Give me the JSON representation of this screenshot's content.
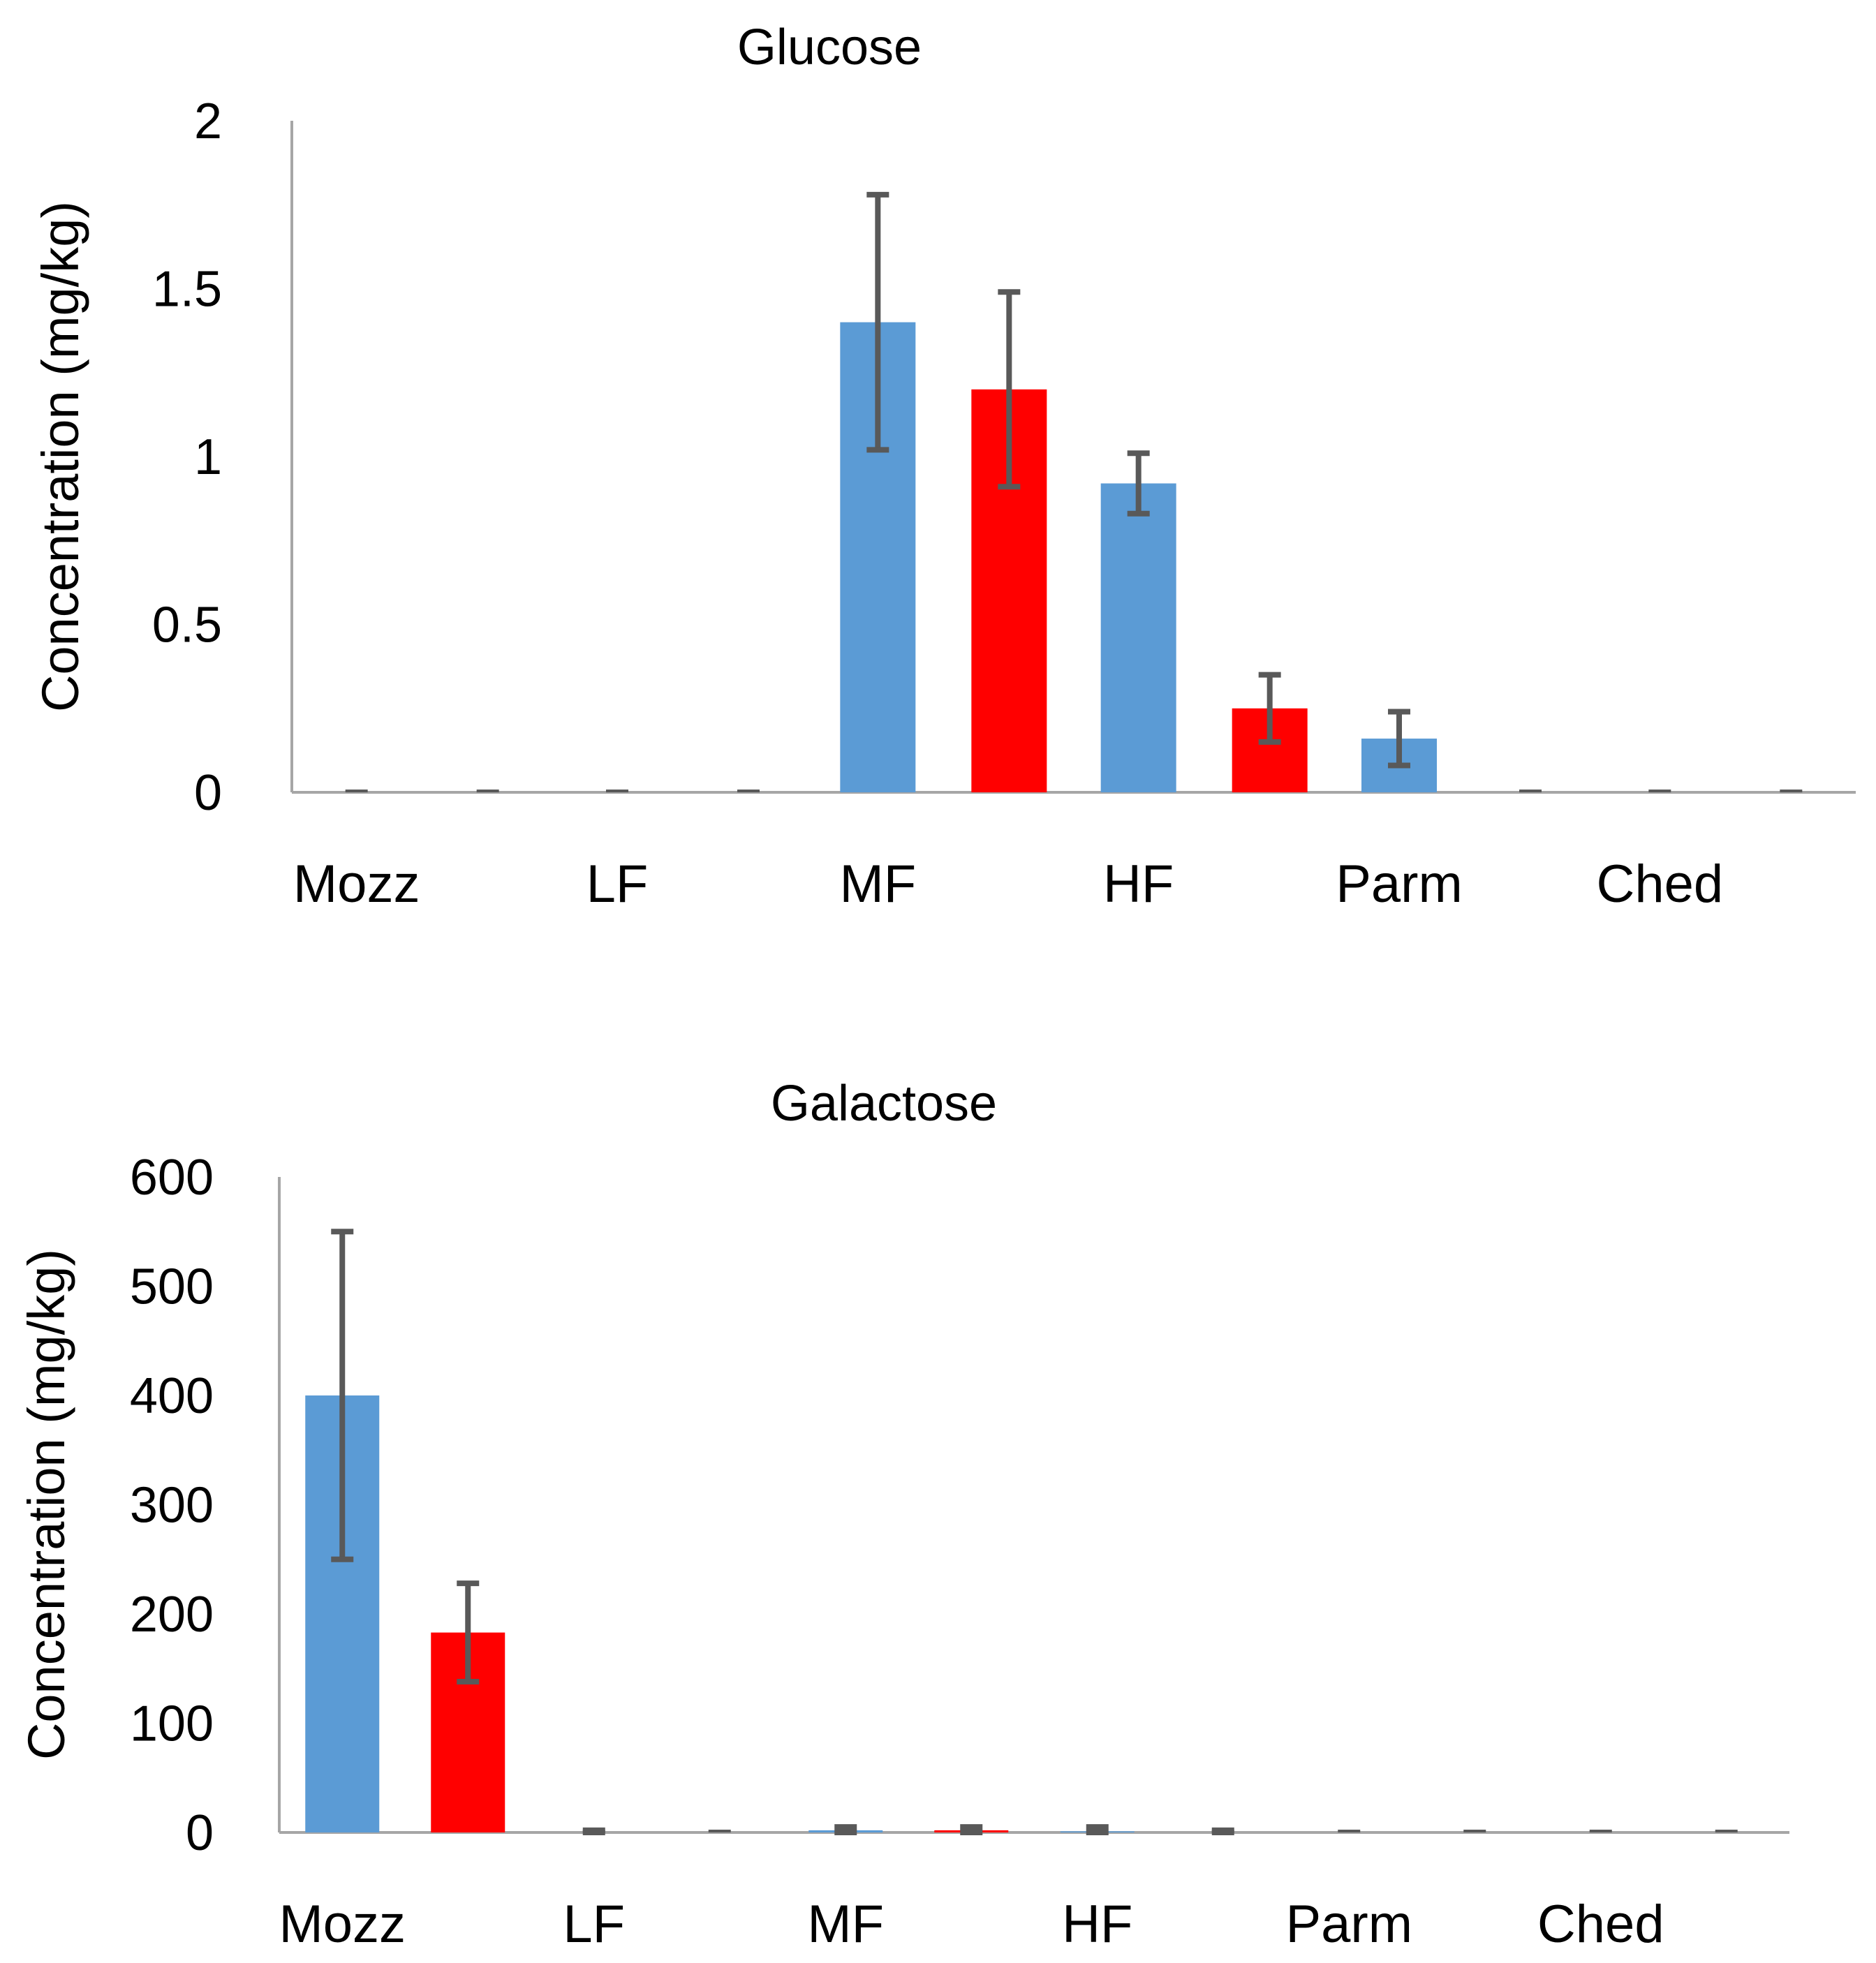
{
  "colors": {
    "blue": "#5B9BD5",
    "red": "#FF0000",
    "axis": "#A6A6A6",
    "error_bar": "#595959"
  },
  "chart_data": [
    {
      "type": "bar",
      "title": "Glucose",
      "ylabel": "Concentration (mg/kg)",
      "xlabel": "",
      "categories": [
        "Mozz",
        "LF",
        "MF",
        "HF",
        "Parm",
        "Ched"
      ],
      "ylim": [
        0,
        2
      ],
      "yticks": [
        "0",
        "0.5",
        "1",
        "1.5",
        "2"
      ],
      "grid": false,
      "series": [
        {
          "color": "blue",
          "values": [
            0,
            0,
            1.4,
            0.92,
            0.16,
            0
          ],
          "errors": [
            0,
            0,
            0.38,
            0.09,
            0.08,
            0
          ]
        },
        {
          "color": "red",
          "values": [
            0,
            0,
            1.2,
            0.25,
            0,
            0
          ],
          "errors": [
            0,
            0,
            0.29,
            0.1,
            0,
            0
          ]
        }
      ]
    },
    {
      "type": "bar",
      "title": "Galactose",
      "ylabel": "Concentration (mg/kg)",
      "xlabel": "",
      "categories": [
        "Mozz",
        "LF",
        "MF",
        "HF",
        "Parm",
        "Ched"
      ],
      "ylim": [
        0,
        600
      ],
      "yticks": [
        "0",
        "100",
        "200",
        "300",
        "400",
        "500",
        "600"
      ],
      "grid": false,
      "series": [
        {
          "color": "blue",
          "values": [
            400,
            0,
            2,
            1,
            0,
            0
          ],
          "errors": [
            150,
            2,
            3,
            4,
            0,
            0
          ]
        },
        {
          "color": "red",
          "values": [
            183,
            0,
            2,
            0,
            0,
            0
          ],
          "errors": [
            45,
            0,
            3,
            2,
            0,
            0
          ]
        }
      ]
    }
  ]
}
